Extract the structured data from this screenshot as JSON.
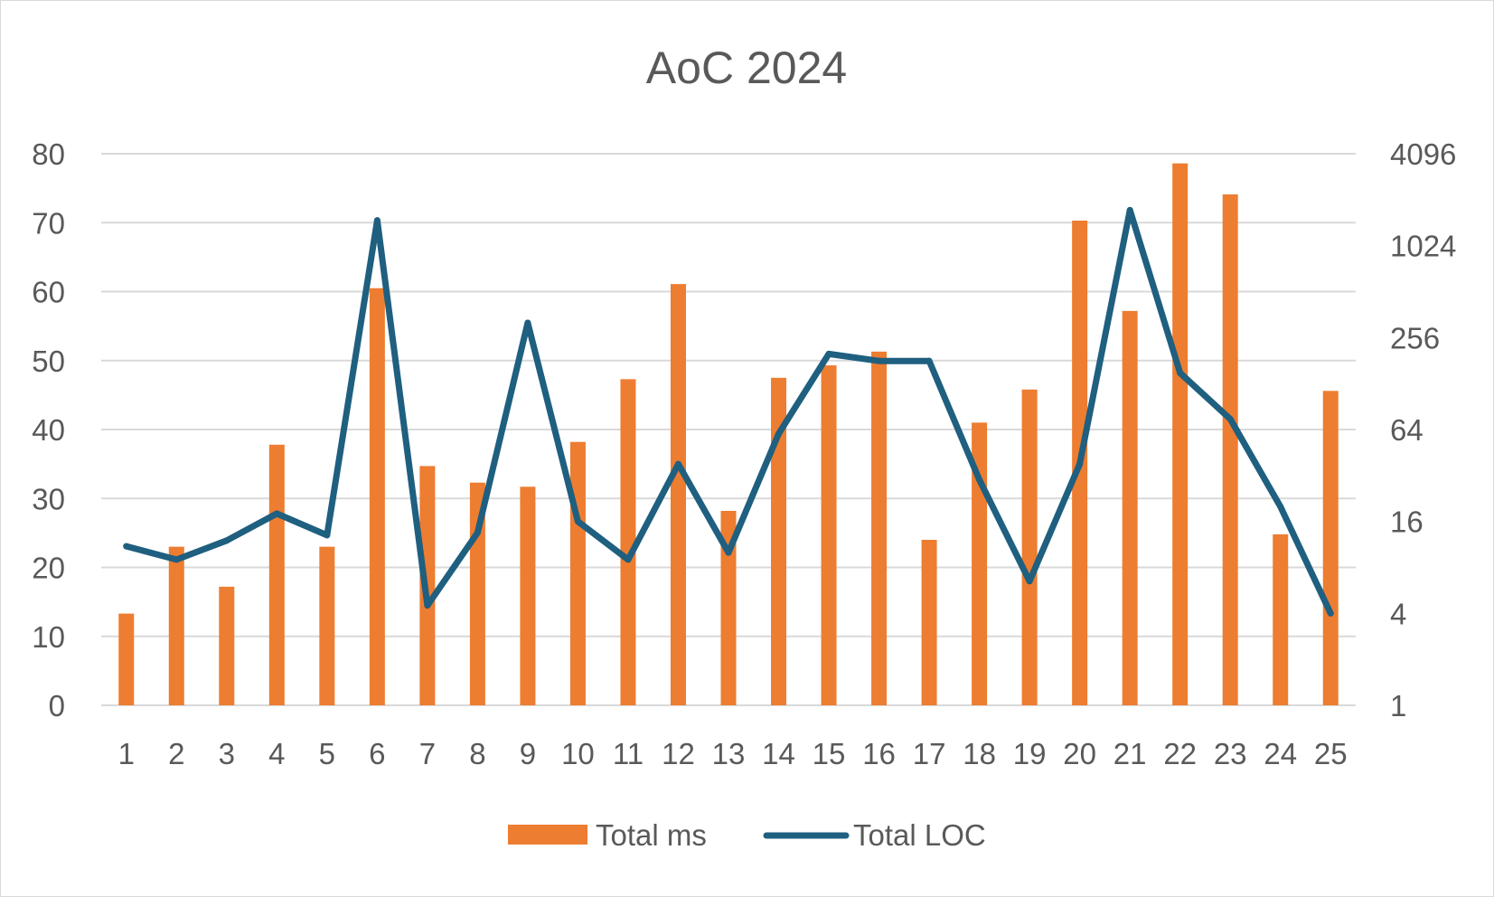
{
  "chart_data": {
    "type": "bar",
    "title": "AoC 2024",
    "categories": [
      "1",
      "2",
      "3",
      "4",
      "5",
      "6",
      "7",
      "8",
      "9",
      "10",
      "11",
      "12",
      "13",
      "14",
      "15",
      "16",
      "17",
      "18",
      "19",
      "20",
      "21",
      "22",
      "23",
      "24",
      "25"
    ],
    "series": [
      {
        "name": "Total ms",
        "type": "bar",
        "axis": "left",
        "color": "#ED7D31",
        "values": [
          13.3,
          23,
          17.2,
          37.8,
          23,
          60.5,
          34.7,
          32.3,
          31.7,
          38.2,
          47.3,
          61.1,
          28.2,
          47.5,
          49.3,
          51.3,
          24,
          41,
          45.8,
          70.3,
          57.2,
          78.6,
          74.1,
          24.8,
          45.6
        ]
      },
      {
        "name": "Total LOC",
        "type": "line",
        "axis": "right",
        "color": "#1F5F7F",
        "values": [
          11,
          9,
          12,
          18,
          13,
          1500,
          4.5,
          13.5,
          320,
          16,
          9,
          38,
          10,
          60,
          200,
          180,
          180,
          30,
          6.5,
          38,
          1750,
          150,
          75,
          20,
          4
        ]
      }
    ],
    "y_left": {
      "ylim": [
        0,
        80
      ],
      "ticks": [
        "0",
        "10",
        "20",
        "30",
        "40",
        "50",
        "60",
        "70",
        "80"
      ]
    },
    "y_right": {
      "scale": "log2",
      "ylim": [
        1,
        4096
      ],
      "ticks": [
        "1",
        "4",
        "16",
        "64",
        "256",
        "1024",
        "4096"
      ]
    },
    "grid": true,
    "legend_position": "bottom"
  }
}
